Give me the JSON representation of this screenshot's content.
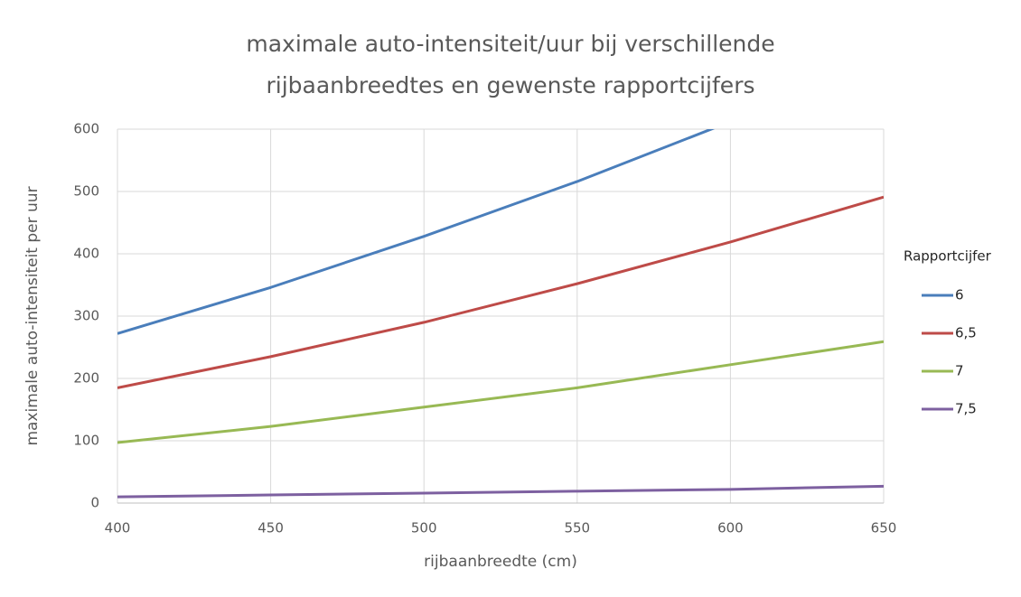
{
  "chart_data": {
    "type": "line",
    "title": [
      "maximale auto-intensiteit/uur bij verschillende",
      "rijbaanbreedtes en gewenste rapportcijfers"
    ],
    "x_label": "rijbaanbreedte (cm)",
    "y_label": "maximale auto-intensiteit per uur",
    "legend_title": "Rapportcijfer",
    "x": [
      400,
      450,
      500,
      550,
      600,
      650
    ],
    "series": [
      {
        "name": "6",
        "color": "#4a7ebb",
        "values": [
          272,
          346,
          428,
          516,
          612,
          null
        ]
      },
      {
        "name": "6,5",
        "color": "#be4b48",
        "values": [
          185,
          235,
          290,
          352,
          419,
          491
        ]
      },
      {
        "name": "7",
        "color": "#98b954",
        "values": [
          97,
          123,
          154,
          185,
          222,
          259
        ]
      },
      {
        "name": "7,5",
        "color": "#7d60a0",
        "values": [
          10,
          13,
          16,
          19,
          22,
          27
        ]
      }
    ],
    "xlim": [
      400,
      650
    ],
    "xticks": [
      400,
      450,
      500,
      550,
      600,
      650
    ],
    "ylim": [
      0,
      600
    ],
    "yticks": [
      0,
      100,
      200,
      300,
      400,
      500,
      600
    ],
    "grid": true,
    "legend": "right"
  }
}
